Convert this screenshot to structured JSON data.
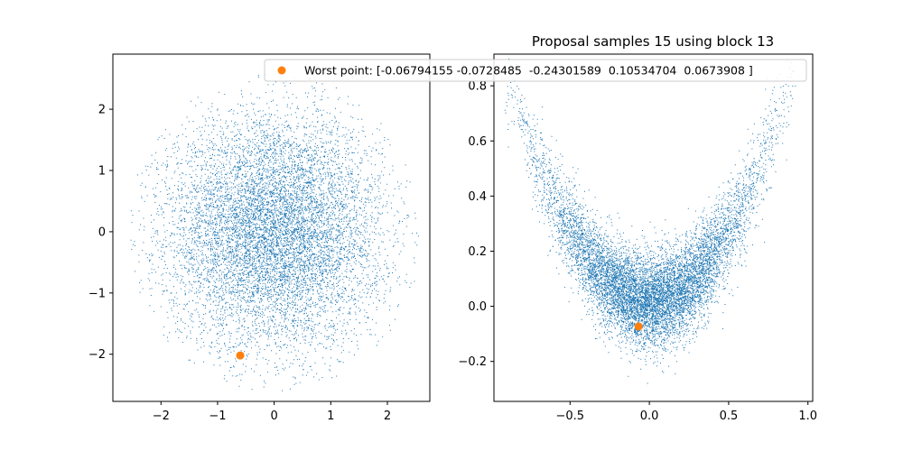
{
  "chart_data": [
    {
      "type": "scatter",
      "title": "",
      "xlabel": "",
      "ylabel": "",
      "xlim": [
        -2.85,
        2.75
      ],
      "ylim": [
        -2.77,
        2.9
      ],
      "xticks": [
        -2,
        -1,
        0,
        1,
        2
      ],
      "yticks": [
        -2,
        -1,
        0,
        1,
        2
      ],
      "grid": false,
      "sample_color": "#1f77b4",
      "sample_distribution": "gaussian cloud centered near (0, 0), std approx 0.95 in x and 0.95 in y, truncated near radius 2.6",
      "highlight": {
        "x": -0.6,
        "y": -2.02,
        "color": "#ff7f0e"
      }
    },
    {
      "type": "scatter",
      "title": "Proposal samples 15 using block 13",
      "xlabel": "",
      "ylabel": "",
      "xlim": [
        -0.98,
        1.03
      ],
      "ylim": [
        -0.345,
        0.915
      ],
      "xticks": [
        -0.5,
        0.0,
        0.5,
        1.0
      ],
      "yticks": [
        -0.2,
        0.0,
        0.2,
        0.4,
        0.6,
        0.8
      ],
      "grid": false,
      "sample_color": "#1f77b4",
      "sample_distribution": "banana shape y ≈ x², x spanning -0.9 to 0.9",
      "highlight": {
        "x": -0.068,
        "y": -0.073,
        "color": "#ff7f0e"
      }
    }
  ],
  "legend": {
    "placement": "top-right",
    "label": "Worst point: [-0.06794155 -0.0728485  -0.24301589  0.10534704  0.0673908 ]",
    "marker_color": "#ff7f0e"
  },
  "tick_text": {
    "left_x": [
      "−2",
      "−1",
      "0",
      "1",
      "2"
    ],
    "left_y": [
      "−2",
      "−1",
      "0",
      "1",
      "2"
    ],
    "right_x": [
      "−0.5",
      "0.0",
      "0.5",
      "1.0"
    ],
    "right_y": [
      "−0.2",
      "0.0",
      "0.2",
      "0.4",
      "0.6",
      "0.8"
    ]
  }
}
